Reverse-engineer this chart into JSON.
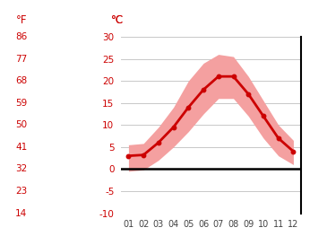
{
  "months": [
    1,
    2,
    3,
    4,
    5,
    6,
    7,
    8,
    9,
    10,
    11,
    12
  ],
  "avg_temp": [
    3.0,
    3.2,
    6.0,
    9.5,
    14.0,
    18.0,
    21.0,
    21.0,
    17.0,
    12.0,
    7.0,
    4.0
  ],
  "temp_max": [
    5.5,
    5.8,
    9.5,
    14.0,
    20.0,
    24.0,
    26.0,
    25.5,
    21.0,
    15.5,
    10.0,
    6.5
  ],
  "temp_min": [
    -0.5,
    -0.2,
    2.0,
    5.0,
    8.5,
    12.5,
    16.0,
    16.0,
    12.0,
    7.0,
    3.0,
    1.0
  ],
  "ylim": [
    -10,
    30
  ],
  "yticks_c": [
    -10,
    -5,
    0,
    5,
    10,
    15,
    20,
    25,
    30
  ],
  "yticks_f": [
    14,
    23,
    32,
    41,
    50,
    59,
    68,
    77,
    86
  ],
  "line_color": "#cc0000",
  "band_color": "#f4a0a0",
  "zero_line_color": "#000000",
  "axis_color": "#cc0000",
  "grid_color": "#c8c8c8",
  "bg_color": "#ffffff",
  "xtick_color": "#444444",
  "title_f": "°F",
  "title_c": "°C"
}
